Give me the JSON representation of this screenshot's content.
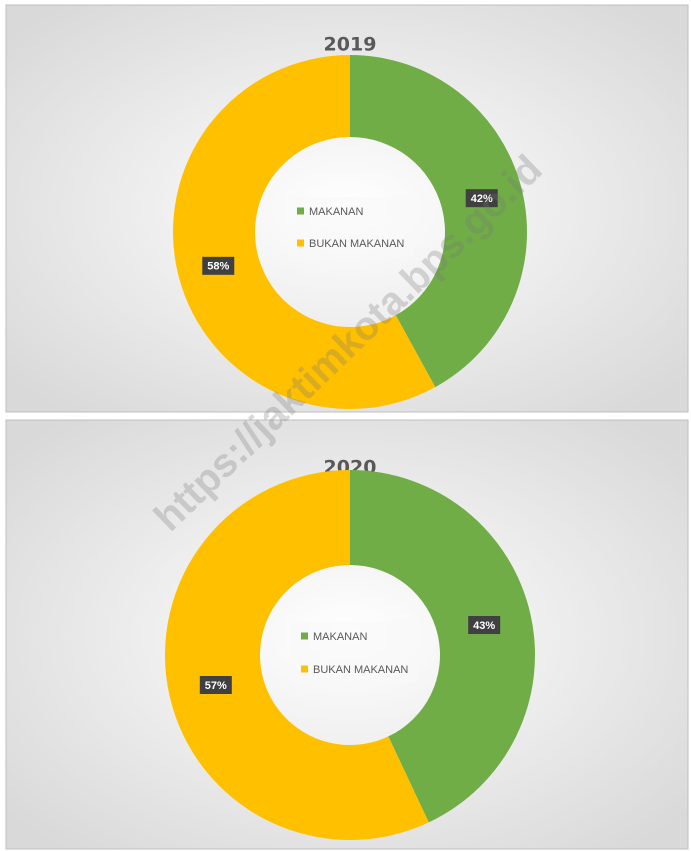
{
  "chart_data": [
    {
      "type": "donut",
      "title": "2019",
      "categories": [
        "MAKANAN",
        "BUKAN MAKANAN"
      ],
      "values": [
        42,
        58
      ],
      "value_labels": [
        "42%",
        "58%"
      ],
      "colors": [
        "#70ad47",
        "#ffc000"
      ]
    },
    {
      "type": "donut",
      "title": "2020",
      "categories": [
        "MAKANAN",
        "BUKAN MAKANAN"
      ],
      "values": [
        43,
        57
      ],
      "value_labels": [
        "43%",
        "57%"
      ],
      "colors": [
        "#70ad47",
        "#ffc000"
      ]
    }
  ],
  "watermark": "https://jaktimkota.bps.go.id"
}
